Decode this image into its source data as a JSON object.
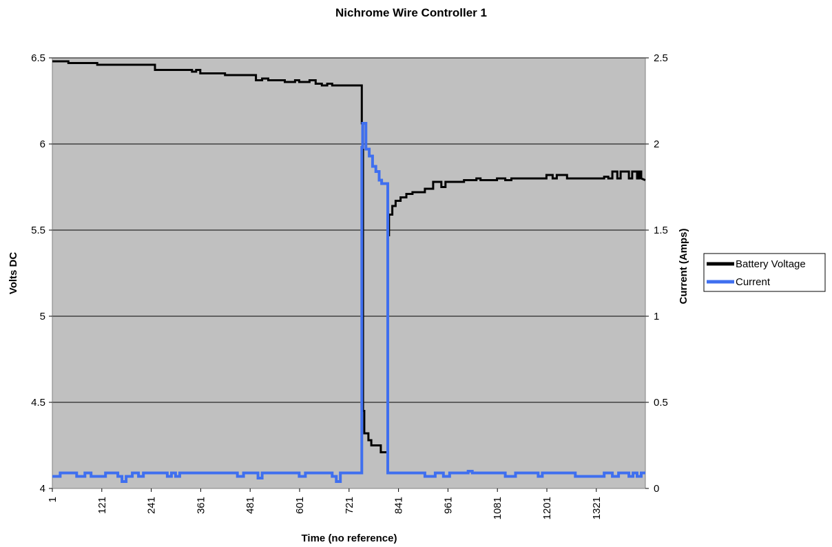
{
  "chart_data": {
    "type": "line",
    "title": "Nichrome Wire Controller 1",
    "xlabel": "Time (no reference)",
    "ylabel_left": "Volts DC",
    "ylabel_right": "Current (Amps)",
    "xlim": [
      1,
      1440
    ],
    "ylim_left": [
      4,
      6.5
    ],
    "ylim_right": [
      0,
      2.5
    ],
    "x_ticks": [
      1,
      121,
      241,
      361,
      481,
      601,
      721,
      841,
      961,
      1081,
      1201,
      1321
    ],
    "y_left_ticks": [
      4,
      4.5,
      5,
      5.5,
      6,
      6.5
    ],
    "y_right_ticks": [
      0,
      0.5,
      1,
      1.5,
      2,
      2.5
    ],
    "grid": true,
    "plot_background": "#c0c0c0",
    "legend_position": "right",
    "series": [
      {
        "name": "Battery Voltage",
        "axis": "left",
        "color": "#000000",
        "points": [
          [
            1,
            6.48
          ],
          [
            40,
            6.48
          ],
          [
            40,
            6.47
          ],
          [
            110,
            6.47
          ],
          [
            110,
            6.46
          ],
          [
            250,
            6.46
          ],
          [
            250,
            6.43
          ],
          [
            340,
            6.43
          ],
          [
            340,
            6.42
          ],
          [
            350,
            6.42
          ],
          [
            350,
            6.43
          ],
          [
            360,
            6.43
          ],
          [
            360,
            6.41
          ],
          [
            420,
            6.41
          ],
          [
            420,
            6.4
          ],
          [
            495,
            6.4
          ],
          [
            495,
            6.37
          ],
          [
            510,
            6.37
          ],
          [
            510,
            6.38
          ],
          [
            525,
            6.38
          ],
          [
            525,
            6.37
          ],
          [
            565,
            6.37
          ],
          [
            565,
            6.36
          ],
          [
            590,
            6.36
          ],
          [
            590,
            6.37
          ],
          [
            600,
            6.37
          ],
          [
            600,
            6.36
          ],
          [
            625,
            6.36
          ],
          [
            625,
            6.37
          ],
          [
            640,
            6.37
          ],
          [
            640,
            6.35
          ],
          [
            655,
            6.35
          ],
          [
            655,
            6.34
          ],
          [
            668,
            6.34
          ],
          [
            668,
            6.35
          ],
          [
            680,
            6.35
          ],
          [
            680,
            6.34
          ],
          [
            752,
            6.34
          ],
          [
            752,
            6.12
          ],
          [
            755,
            6.12
          ],
          [
            755,
            4.45
          ],
          [
            758,
            4.45
          ],
          [
            758,
            4.32
          ],
          [
            768,
            4.32
          ],
          [
            768,
            4.28
          ],
          [
            775,
            4.28
          ],
          [
            775,
            4.25
          ],
          [
            798,
            4.25
          ],
          [
            798,
            4.21
          ],
          [
            803,
            4.21
          ],
          [
            803,
            4.21
          ],
          [
            815,
            4.21
          ],
          [
            815,
            5.47
          ],
          [
            818,
            5.47
          ],
          [
            818,
            5.59
          ],
          [
            826,
            5.59
          ],
          [
            826,
            5.64
          ],
          [
            834,
            5.64
          ],
          [
            834,
            5.67
          ],
          [
            846,
            5.67
          ],
          [
            846,
            5.69
          ],
          [
            860,
            5.69
          ],
          [
            860,
            5.71
          ],
          [
            875,
            5.71
          ],
          [
            875,
            5.72
          ],
          [
            905,
            5.72
          ],
          [
            905,
            5.74
          ],
          [
            925,
            5.74
          ],
          [
            925,
            5.78
          ],
          [
            945,
            5.78
          ],
          [
            945,
            5.75
          ],
          [
            955,
            5.75
          ],
          [
            955,
            5.78
          ],
          [
            1000,
            5.78
          ],
          [
            1000,
            5.79
          ],
          [
            1030,
            5.79
          ],
          [
            1030,
            5.8
          ],
          [
            1040,
            5.8
          ],
          [
            1040,
            5.79
          ],
          [
            1080,
            5.79
          ],
          [
            1080,
            5.8
          ],
          [
            1100,
            5.8
          ],
          [
            1100,
            5.79
          ],
          [
            1115,
            5.79
          ],
          [
            1115,
            5.8
          ],
          [
            1200,
            5.8
          ],
          [
            1200,
            5.82
          ],
          [
            1215,
            5.82
          ],
          [
            1215,
            5.8
          ],
          [
            1225,
            5.8
          ],
          [
            1225,
            5.82
          ],
          [
            1250,
            5.82
          ],
          [
            1250,
            5.8
          ],
          [
            1340,
            5.8
          ],
          [
            1340,
            5.81
          ],
          [
            1350,
            5.81
          ],
          [
            1350,
            5.8
          ],
          [
            1360,
            5.8
          ],
          [
            1360,
            5.84
          ],
          [
            1372,
            5.84
          ],
          [
            1372,
            5.8
          ],
          [
            1380,
            5.8
          ],
          [
            1380,
            5.84
          ],
          [
            1400,
            5.84
          ],
          [
            1400,
            5.8
          ],
          [
            1408,
            5.8
          ],
          [
            1408,
            5.84
          ],
          [
            1420,
            5.84
          ],
          [
            1420,
            5.8
          ],
          [
            1425,
            5.8
          ],
          [
            1425,
            5.84
          ],
          [
            1430,
            5.84
          ],
          [
            1430,
            5.8
          ],
          [
            1440,
            5.79
          ]
        ]
      },
      {
        "name": "Current",
        "axis": "right",
        "color": "#3f6fef",
        "points": [
          [
            1,
            0.07
          ],
          [
            20,
            0.07
          ],
          [
            20,
            0.09
          ],
          [
            60,
            0.09
          ],
          [
            60,
            0.07
          ],
          [
            80,
            0.07
          ],
          [
            80,
            0.09
          ],
          [
            95,
            0.09
          ],
          [
            95,
            0.07
          ],
          [
            130,
            0.07
          ],
          [
            130,
            0.09
          ],
          [
            160,
            0.09
          ],
          [
            160,
            0.07
          ],
          [
            170,
            0.07
          ],
          [
            170,
            0.04
          ],
          [
            180,
            0.04
          ],
          [
            180,
            0.07
          ],
          [
            195,
            0.07
          ],
          [
            195,
            0.09
          ],
          [
            210,
            0.09
          ],
          [
            210,
            0.07
          ],
          [
            222,
            0.07
          ],
          [
            222,
            0.09
          ],
          [
            280,
            0.09
          ],
          [
            280,
            0.07
          ],
          [
            290,
            0.07
          ],
          [
            290,
            0.09
          ],
          [
            300,
            0.09
          ],
          [
            300,
            0.07
          ],
          [
            310,
            0.07
          ],
          [
            310,
            0.09
          ],
          [
            450,
            0.09
          ],
          [
            450,
            0.07
          ],
          [
            465,
            0.07
          ],
          [
            465,
            0.09
          ],
          [
            500,
            0.09
          ],
          [
            500,
            0.06
          ],
          [
            510,
            0.06
          ],
          [
            510,
            0.09
          ],
          [
            600,
            0.09
          ],
          [
            600,
            0.07
          ],
          [
            615,
            0.07
          ],
          [
            615,
            0.09
          ],
          [
            680,
            0.09
          ],
          [
            680,
            0.07
          ],
          [
            690,
            0.07
          ],
          [
            690,
            0.04
          ],
          [
            700,
            0.04
          ],
          [
            700,
            0.09
          ],
          [
            752,
            0.09
          ],
          [
            752,
            1.98
          ],
          [
            754,
            1.98
          ],
          [
            754,
            2.12
          ],
          [
            762,
            2.12
          ],
          [
            762,
            1.97
          ],
          [
            770,
            1.97
          ],
          [
            770,
            1.93
          ],
          [
            778,
            1.93
          ],
          [
            778,
            1.87
          ],
          [
            786,
            1.87
          ],
          [
            786,
            1.84
          ],
          [
            794,
            1.84
          ],
          [
            794,
            1.79
          ],
          [
            800,
            1.79
          ],
          [
            800,
            1.77
          ],
          [
            815,
            1.77
          ],
          [
            815,
            0.09
          ],
          [
            905,
            0.09
          ],
          [
            905,
            0.07
          ],
          [
            930,
            0.07
          ],
          [
            930,
            0.09
          ],
          [
            950,
            0.09
          ],
          [
            950,
            0.07
          ],
          [
            965,
            0.07
          ],
          [
            965,
            0.09
          ],
          [
            1010,
            0.09
          ],
          [
            1010,
            0.1
          ],
          [
            1020,
            0.1
          ],
          [
            1020,
            0.09
          ],
          [
            1100,
            0.09
          ],
          [
            1100,
            0.07
          ],
          [
            1125,
            0.07
          ],
          [
            1125,
            0.09
          ],
          [
            1180,
            0.09
          ],
          [
            1180,
            0.07
          ],
          [
            1190,
            0.07
          ],
          [
            1190,
            0.09
          ],
          [
            1270,
            0.09
          ],
          [
            1270,
            0.07
          ],
          [
            1340,
            0.07
          ],
          [
            1340,
            0.09
          ],
          [
            1360,
            0.09
          ],
          [
            1360,
            0.07
          ],
          [
            1375,
            0.07
          ],
          [
            1375,
            0.09
          ],
          [
            1400,
            0.09
          ],
          [
            1400,
            0.07
          ],
          [
            1410,
            0.07
          ],
          [
            1410,
            0.09
          ],
          [
            1420,
            0.09
          ],
          [
            1420,
            0.07
          ],
          [
            1430,
            0.07
          ],
          [
            1430,
            0.09
          ],
          [
            1440,
            0.09
          ]
        ]
      }
    ]
  }
}
